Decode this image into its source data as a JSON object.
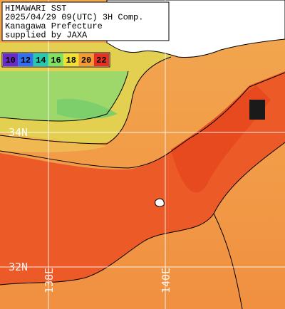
{
  "header": {
    "lines": [
      "HIMAWARI SST",
      "2025/04/29 09(UTC) 3H Comp.",
      "Kanagawa Prefecture",
      "supplied by JAXA"
    ]
  },
  "legend": {
    "items": [
      {
        "label": "10",
        "color": "#6a2ac8"
      },
      {
        "label": "12",
        "color": "#2f6ff0"
      },
      {
        "label": "14",
        "color": "#28c8b0"
      },
      {
        "label": "16",
        "color": "#80e060"
      },
      {
        "label": "18",
        "color": "#f0e030"
      },
      {
        "label": "20",
        "color": "#f49a30"
      },
      {
        "label": "22",
        "color": "#e83020"
      }
    ]
  },
  "grid": {
    "latitudes": [
      "34N",
      "32N"
    ],
    "longitudes": [
      "138E",
      "140E"
    ]
  }
}
